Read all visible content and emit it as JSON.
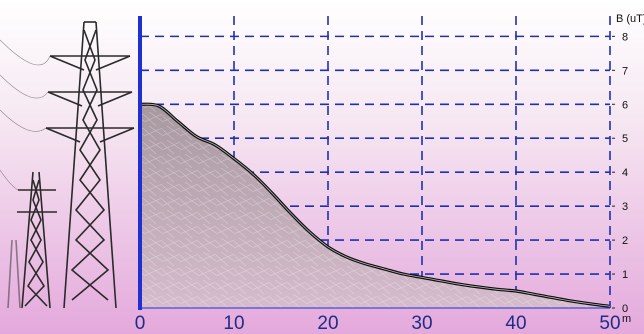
{
  "chart_data": {
    "type": "area",
    "xlabel": "m",
    "ylabel": "B (uT)",
    "x_ticks": [
      "0",
      "10",
      "20",
      "30",
      "40",
      "50"
    ],
    "y_ticks": [
      "0",
      "1",
      "2",
      "3",
      "4",
      "5",
      "6",
      "7",
      "8"
    ],
    "xlim": [
      0,
      50
    ],
    "ylim": [
      0,
      8.6
    ],
    "grid": true,
    "series": [
      {
        "x": [
          0,
          2,
          4,
          6,
          8,
          10,
          12,
          14,
          16,
          18,
          20,
          22,
          24,
          26,
          28,
          30,
          32,
          34,
          36,
          38,
          40,
          42,
          44,
          46,
          48,
          50
        ],
        "values": [
          6.0,
          5.95,
          5.5,
          5.05,
          4.8,
          4.4,
          3.95,
          3.4,
          2.8,
          2.25,
          1.8,
          1.5,
          1.3,
          1.15,
          1.0,
          0.9,
          0.8,
          0.7,
          0.62,
          0.55,
          0.5,
          0.4,
          0.3,
          0.2,
          0.12,
          0.05
        ]
      }
    ]
  },
  "colors": {
    "background_top": "#ffffff",
    "background_bottom": "#e7b2df",
    "grid": "#1f2fb5",
    "axis": "#1f2fd0",
    "area_fill": "#b8a6b3",
    "curve": "#111111"
  },
  "icons": [
    "power-pylon-icon"
  ]
}
